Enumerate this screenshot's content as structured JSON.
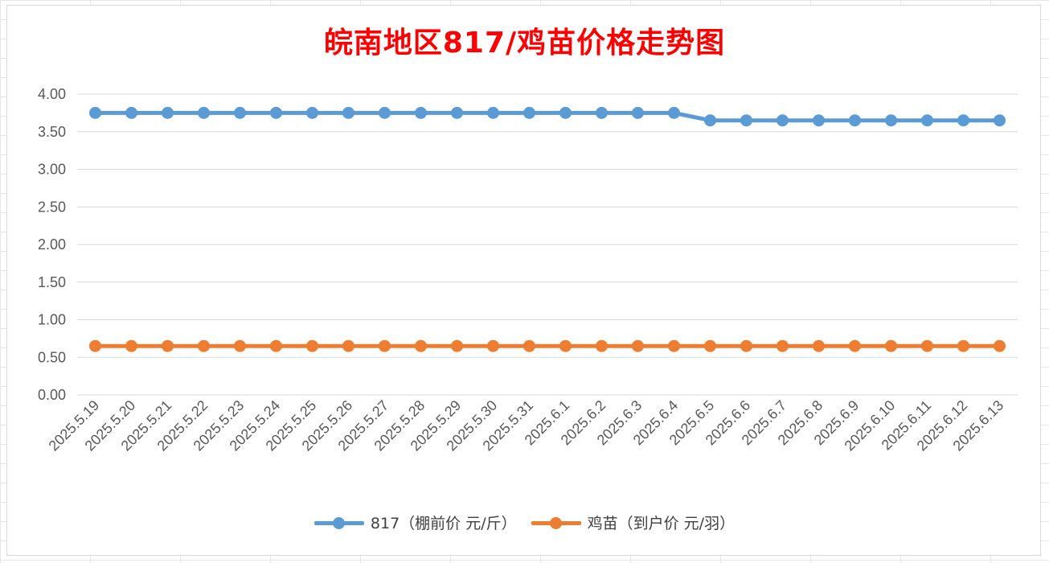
{
  "chart_data": {
    "type": "line",
    "title": "皖南地区817/鸡苗价格走势图",
    "categories": [
      "2025.5.19",
      "2025.5.20",
      "2025.5.21",
      "2025.5.22",
      "2025.5.23",
      "2025.5.24",
      "2025.5.25",
      "2025.5.26",
      "2025.5.27",
      "2025.5.28",
      "2025.5.29",
      "2025.5.30",
      "2025.5.31",
      "2025.6.1",
      "2025.6.2",
      "2025.6.3",
      "2025.6.4",
      "2025.6.5",
      "2025.6.6",
      "2025.6.7",
      "2025.6.8",
      "2025.6.9",
      "2025.6.10",
      "2025.6.11",
      "2025.6.12",
      "2025.6.13"
    ],
    "series": [
      {
        "name": "817（棚前价 元/斤）",
        "color": "#5b9bd5",
        "values": [
          3.75,
          3.75,
          3.75,
          3.75,
          3.75,
          3.75,
          3.75,
          3.75,
          3.75,
          3.75,
          3.75,
          3.75,
          3.75,
          3.75,
          3.75,
          3.75,
          3.75,
          3.65,
          3.65,
          3.65,
          3.65,
          3.65,
          3.65,
          3.65,
          3.65,
          3.65
        ]
      },
      {
        "name": "鸡苗（到户价 元/羽）",
        "color": "#ed7d31",
        "values": [
          0.65,
          0.65,
          0.65,
          0.65,
          0.65,
          0.65,
          0.65,
          0.65,
          0.65,
          0.65,
          0.65,
          0.65,
          0.65,
          0.65,
          0.65,
          0.65,
          0.65,
          0.65,
          0.65,
          0.65,
          0.65,
          0.65,
          0.65,
          0.65,
          0.65,
          0.65
        ]
      }
    ],
    "yticks": [
      "0.00",
      "0.50",
      "1.00",
      "1.50",
      "2.00",
      "2.50",
      "3.00",
      "3.50",
      "4.00"
    ],
    "ylim": [
      0,
      4
    ],
    "grid": true,
    "legend_position": "bottom",
    "xlabel": "",
    "ylabel": ""
  }
}
